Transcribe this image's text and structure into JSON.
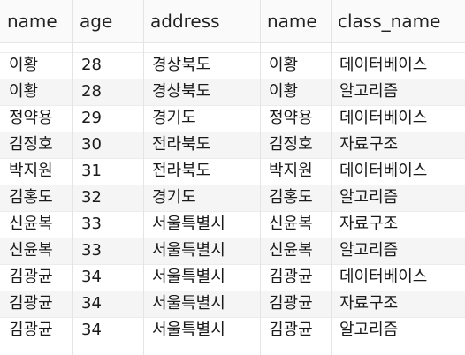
{
  "table": {
    "columns": [
      "name",
      "age",
      "address",
      "name",
      "class_name"
    ],
    "rows": [
      [
        "이황",
        "28",
        "경상북도",
        "이황",
        "데이터베이스"
      ],
      [
        "이황",
        "28",
        "경상북도",
        "이황",
        "알고리즘"
      ],
      [
        "정약용",
        "29",
        "경기도",
        "정약용",
        "데이터베이스"
      ],
      [
        "김정호",
        "30",
        "전라북도",
        "김정호",
        "자료구조"
      ],
      [
        "박지원",
        "31",
        "전라북도",
        "박지원",
        "데이터베이스"
      ],
      [
        "김홍도",
        "32",
        "경기도",
        "김홍도",
        "알고리즘"
      ],
      [
        "신윤복",
        "33",
        "서울특별시",
        "신윤복",
        "자료구조"
      ],
      [
        "신윤복",
        "33",
        "서울특별시",
        "신윤복",
        "알고리즘"
      ],
      [
        "김광균",
        "34",
        "서울특별시",
        "김광균",
        "데이터베이스"
      ],
      [
        "김광균",
        "34",
        "서울특별시",
        "김광균",
        "자료구조"
      ],
      [
        "김광균",
        "34",
        "서울특별시",
        "김광균",
        "알고리즘"
      ]
    ]
  }
}
